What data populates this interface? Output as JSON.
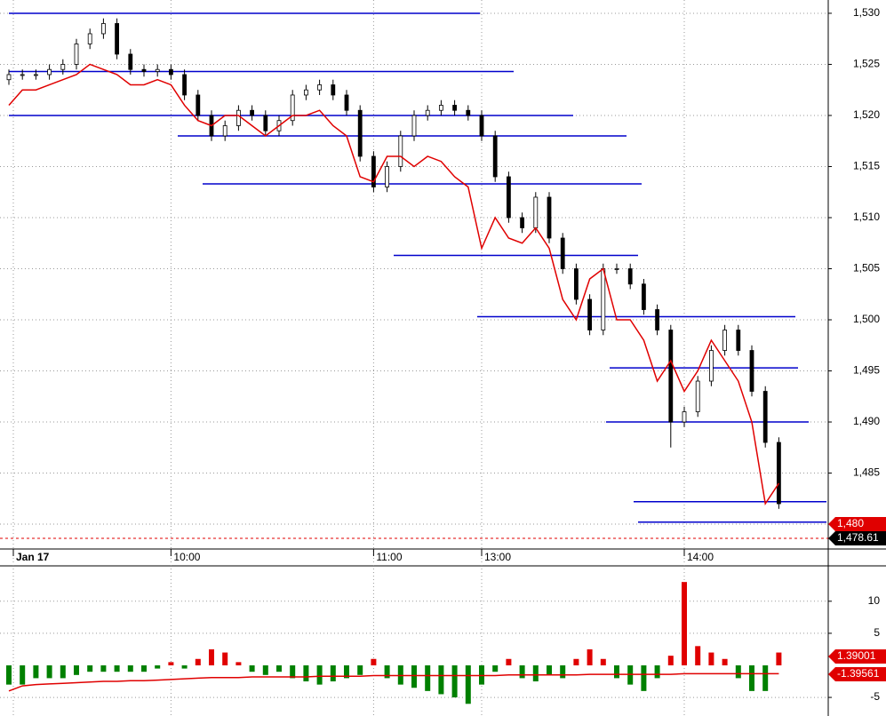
{
  "chart_data": [
    {
      "type": "candlestick",
      "categories": [
        "Jan 17",
        null,
        null,
        null,
        null,
        null,
        null,
        null,
        null,
        null,
        null,
        null,
        "10:00",
        null,
        null,
        null,
        null,
        null,
        null,
        null,
        null,
        null,
        null,
        null,
        null,
        null,
        null,
        "11:00",
        null,
        null,
        null,
        null,
        null,
        null,
        null,
        "13:00",
        null,
        null,
        null,
        null,
        null,
        null,
        null,
        null,
        null,
        null,
        null,
        null,
        null,
        null,
        "14:00",
        null,
        null,
        null,
        null,
        null,
        null,
        null
      ],
      "open": [
        1523.5,
        1524,
        1524,
        1524,
        1524.5,
        1525,
        1527,
        1528,
        1529,
        1526,
        1524.5,
        1524.3,
        1524.5,
        1524,
        1522,
        1520,
        1518,
        1519,
        1520.5,
        1520,
        1518.5,
        1519.5,
        1522,
        1522.5,
        1523,
        1522,
        1520.5,
        1516,
        1513,
        1515,
        1518,
        1520,
        1520.5,
        1521,
        1520.5,
        1520,
        1518,
        1514,
        1510,
        1509,
        1512,
        1508,
        1505,
        1502,
        1499,
        1505,
        1505,
        1503.5,
        1501,
        1499,
        1490,
        1491,
        1494,
        1497,
        1499,
        1497,
        1493,
        1488
      ],
      "high": [
        1524.5,
        1524.5,
        1524.5,
        1525,
        1525.5,
        1527.5,
        1528.5,
        1529.5,
        1529.5,
        1526.5,
        1525,
        1525,
        1525,
        1524.5,
        1522.5,
        1520.5,
        1519.5,
        1521,
        1521,
        1520.5,
        1520,
        1522.5,
        1523,
        1523.5,
        1523.5,
        1522.5,
        1521,
        1516.5,
        1515.5,
        1518.5,
        1520.5,
        1521,
        1521.5,
        1521.5,
        1521,
        1520.5,
        1518.5,
        1514.5,
        1510.5,
        1512.5,
        1512.5,
        1508.5,
        1505.5,
        1502.5,
        1505.5,
        1505.5,
        1505.5,
        1504,
        1501.5,
        1499.5,
        1491.5,
        1494.5,
        1497.5,
        1499.5,
        1499.5,
        1497.5,
        1493.5,
        1488.5
      ],
      "low": [
        1523,
        1523.5,
        1523.5,
        1523.5,
        1524,
        1524.5,
        1526.5,
        1527.5,
        1525.5,
        1524,
        1523.8,
        1523.8,
        1523.5,
        1521.5,
        1519.5,
        1517.5,
        1517.5,
        1518.5,
        1519.5,
        1518,
        1518,
        1519,
        1521.5,
        1522,
        1521.5,
        1520,
        1515.5,
        1512.5,
        1512.5,
        1514.5,
        1517.5,
        1519.5,
        1520,
        1520,
        1519.5,
        1517.5,
        1513.5,
        1509.5,
        1508.5,
        1508.5,
        1507.5,
        1504.5,
        1501.5,
        1498.5,
        1498.5,
        1504.5,
        1503,
        1500.5,
        1498.5,
        1487.5,
        1489.5,
        1490.5,
        1493.5,
        1496.5,
        1496.5,
        1492.5,
        1487.5,
        1481.5
      ],
      "close": [
        1524,
        1524,
        1524,
        1524.5,
        1525,
        1527,
        1528,
        1529,
        1526,
        1524.5,
        1524.3,
        1524.5,
        1524,
        1522,
        1520,
        1518,
        1519,
        1520.5,
        1520,
        1518.5,
        1519.5,
        1522,
        1522.5,
        1523,
        1522,
        1520.5,
        1516,
        1513,
        1515,
        1518,
        1520,
        1520.5,
        1521,
        1520.5,
        1520,
        1518,
        1514,
        1510,
        1509,
        1512,
        1508,
        1505,
        1502,
        1499,
        1505,
        1505,
        1503.5,
        1501,
        1499,
        1490,
        1491,
        1494,
        1497,
        1499,
        1497,
        1493,
        1488,
        1482
      ],
      "line": {
        "color": "#e00000",
        "values": [
          1521,
          1522.5,
          1522.5,
          1523,
          1523.5,
          1524,
          1525,
          1524.5,
          1524,
          1523,
          1523,
          1523.5,
          1523,
          1521,
          1519.5,
          1519,
          1520,
          1520,
          1519,
          1518,
          1519,
          1520,
          1520,
          1520.5,
          1519,
          1518,
          1514,
          1513.5,
          1516,
          1516,
          1515,
          1516,
          1515.5,
          1514,
          1513,
          1507,
          1510,
          1508,
          1507.5,
          1509,
          1507,
          1502,
          1500,
          1504,
          1505,
          1500,
          1500,
          1498,
          1494,
          1496,
          1493,
          1495,
          1498,
          1496,
          1494,
          1490,
          1482,
          1484
        ]
      },
      "levels": {
        "color": "#0000cc",
        "values": [
          1530,
          1524.3,
          1520,
          1518,
          1513.3,
          1506.3,
          1500.3,
          1495.3,
          1490,
          1482.2,
          1480.2
        ]
      },
      "ylim": [
        1477.57,
        1531.3
      ],
      "yticks": [
        {
          "value": 1480,
          "label": "1,480"
        },
        {
          "value": 1485,
          "label": "1,485"
        },
        {
          "value": 1490,
          "label": "1,490"
        },
        {
          "value": 1495,
          "label": "1,495"
        },
        {
          "value": 1500,
          "label": "1,500"
        },
        {
          "value": 1505,
          "label": "1,505"
        },
        {
          "value": 1510,
          "label": "1,510"
        },
        {
          "value": 1515,
          "label": "1,515"
        },
        {
          "value": 1520,
          "label": "1,520"
        },
        {
          "value": 1525,
          "label": "1,525"
        },
        {
          "value": 1530,
          "label": "1,530"
        }
      ],
      "markers": [
        {
          "value": 1480,
          "label": "1,480",
          "color": "#e00000"
        },
        {
          "value": 1478.61,
          "label": "1,478.61",
          "color": "#000000"
        }
      ],
      "grid": true
    },
    {
      "type": "bar",
      "values": [
        -3,
        -3,
        -2,
        -2,
        -2,
        -1.5,
        -1,
        -1,
        -1,
        -1,
        -1,
        -0.5,
        0.5,
        -0.5,
        1,
        2.5,
        2,
        0.5,
        -1,
        -1.5,
        -1,
        -2,
        -2.5,
        -3,
        -2.5,
        -2,
        -1.5,
        1,
        -2,
        -3,
        -3.5,
        -4,
        -4.5,
        -5,
        -6,
        -3,
        -1,
        1,
        -2,
        -2.5,
        -1.5,
        -2,
        1,
        2.5,
        1,
        -2,
        -3,
        -4,
        -2,
        1.5,
        13,
        3,
        2,
        1,
        -2,
        -4,
        -4,
        2
      ],
      "color_up": "#e00000",
      "color_down": "#008000",
      "line": {
        "color": "#e00000",
        "values": [
          -4,
          -3.2,
          -3,
          -2.9,
          -2.8,
          -2.7,
          -2.6,
          -2.5,
          -2.5,
          -2.4,
          -2.4,
          -2.3,
          -2.2,
          -2.1,
          -2,
          -1.9,
          -1.9,
          -1.9,
          -1.8,
          -1.8,
          -1.8,
          -1.8,
          -1.8,
          -1.7,
          -1.7,
          -1.7,
          -1.7,
          -1.6,
          -1.6,
          -1.6,
          -1.6,
          -1.6,
          -1.6,
          -1.6,
          -1.6,
          -1.6,
          -1.6,
          -1.5,
          -1.5,
          -1.5,
          -1.5,
          -1.5,
          -1.5,
          -1.4,
          -1.4,
          -1.4,
          -1.4,
          -1.4,
          -1.4,
          -1.4,
          -1.3,
          -1.3,
          -1.3,
          -1.3,
          -1.3,
          -1.3,
          -1.3,
          -1.3
        ]
      },
      "ylim": [
        -7.9,
        15.1
      ],
      "yticks": [
        -5,
        5,
        10
      ],
      "markers": [
        {
          "value": 1.39001,
          "label": "1.39001",
          "color": "#e00000"
        },
        {
          "value": -1.39561,
          "label": "-1.39561",
          "color": "#e00000"
        }
      ],
      "grid": true
    }
  ]
}
